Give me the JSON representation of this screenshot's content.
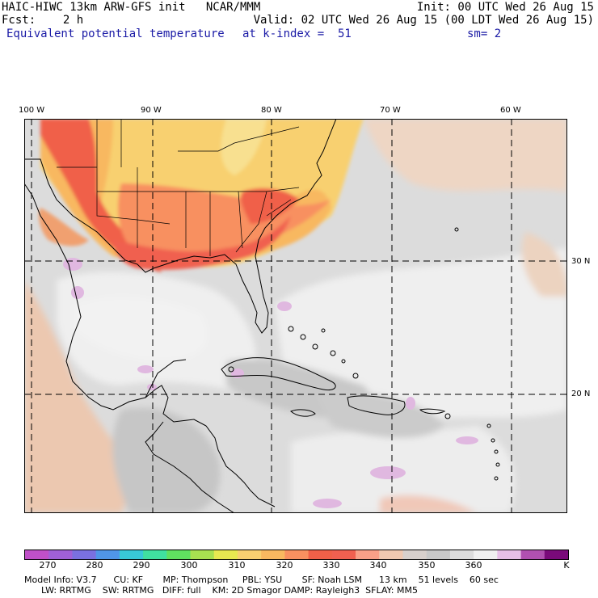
{
  "header": {
    "line1_left": "HAIC-HIWC 13km ARW-GFS init   NCAR/MMM",
    "line1_right": "Init: 00 UTC Wed 26 Aug 15",
    "line2_left": "Fcst:    2 h",
    "line2_right": "Valid: 02 UTC Wed 26 Aug 15 (00 LDT Wed 26 Aug 15)",
    "field_name": "Equivalent potential temperature",
    "level": "at k-index =  51",
    "smoothing": "sm= 2"
  },
  "map": {
    "lon_labels": [
      "100 W",
      "90 W",
      "80 W",
      "70 W",
      "60 W"
    ],
    "lat_labels": [
      "30 N",
      "20 N"
    ],
    "lon_values": [
      -100,
      -90,
      -80,
      -70,
      -60
    ],
    "lat_values": [
      30,
      20
    ]
  },
  "colorbar": {
    "unit": "K",
    "labels": [
      "270",
      "280",
      "290",
      "300",
      "310",
      "320",
      "330",
      "340",
      "350",
      "360"
    ],
    "colors": [
      "#c050c8",
      "#a060d8",
      "#7a70e0",
      "#5096e8",
      "#38c8d8",
      "#40e0a0",
      "#60e060",
      "#a8e050",
      "#e8e850",
      "#f8d070",
      "#f8b860",
      "#f89060",
      "#f06048",
      "#f06050",
      "#f8a088",
      "#f0c8b0",
      "#d8d0cc",
      "#c8c8c8",
      "#dcdcdc",
      "#f0f0f0",
      "#e8c0e8",
      "#b050b0",
      "#7a0a7a"
    ]
  },
  "footer": {
    "line1": "Model Info: V3.7      CU: KF       MP: Thompson     PBL: YSU       SF: Noah LSM      13 km    51 levels    60 sec",
    "line2": "      LW: RRTMG    SW: RRTMG   DIFF: full    KM: 2D Smagor DAMP: Rayleigh3  SFLAY: MM5"
  }
}
